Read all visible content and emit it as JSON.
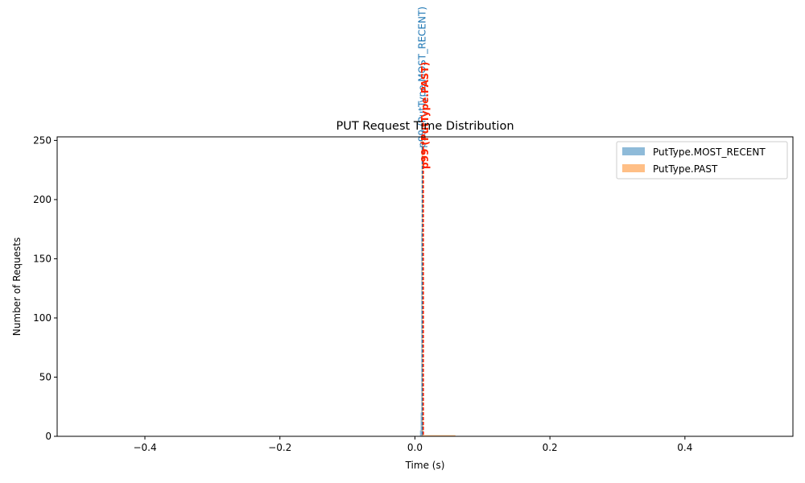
{
  "chart_data": {
    "type": "bar",
    "title": "PUT Request Time Distribution",
    "xlabel": "Time (s)",
    "ylabel": "Number of Requests",
    "xlim": [
      -0.53,
      0.56
    ],
    "ylim": [
      0,
      253
    ],
    "xticks": [
      -0.4,
      -0.2,
      0.0,
      0.2,
      0.4
    ],
    "xtick_labels": [
      "−0.4",
      "−0.2",
      "0.0",
      "0.2",
      "0.4"
    ],
    "yticks": [
      0,
      50,
      100,
      150,
      200,
      250
    ],
    "ytick_labels": [
      "0",
      "50",
      "100",
      "150",
      "200",
      "250"
    ],
    "grid": false,
    "legend_position": "top-right",
    "series": [
      {
        "name": "PutType.MOST_RECENT",
        "color": "#1f77b4",
        "opacity": 0.5,
        "bins": [
          {
            "x0": 0.0075,
            "x1": 0.0085,
            "count": 5
          },
          {
            "x0": 0.0085,
            "x1": 0.0095,
            "count": 20
          },
          {
            "x0": 0.0095,
            "x1": 0.0105,
            "count": 173
          },
          {
            "x0": 0.0105,
            "x1": 0.0115,
            "count": 60
          },
          {
            "x0": 0.0115,
            "x1": 0.0125,
            "count": 10
          }
        ]
      },
      {
        "name": "PutType.PAST",
        "color": "#ff7f0e",
        "opacity": 0.5,
        "bins": [
          {
            "x0": 0.01,
            "x1": 0.012,
            "count": 252
          },
          {
            "x0": 0.012,
            "x1": 0.06,
            "count": 1
          }
        ]
      }
    ],
    "annotations": [
      {
        "type": "vline",
        "x": 0.011,
        "color": "#1f77b4",
        "style": "dashed",
        "label": "p99 (PutType.MOST_RECENT)"
      },
      {
        "type": "vline",
        "x": 0.0125,
        "color": "#ff2200",
        "style": "dashed",
        "label": "p99 (PutType.PAST)"
      }
    ]
  }
}
